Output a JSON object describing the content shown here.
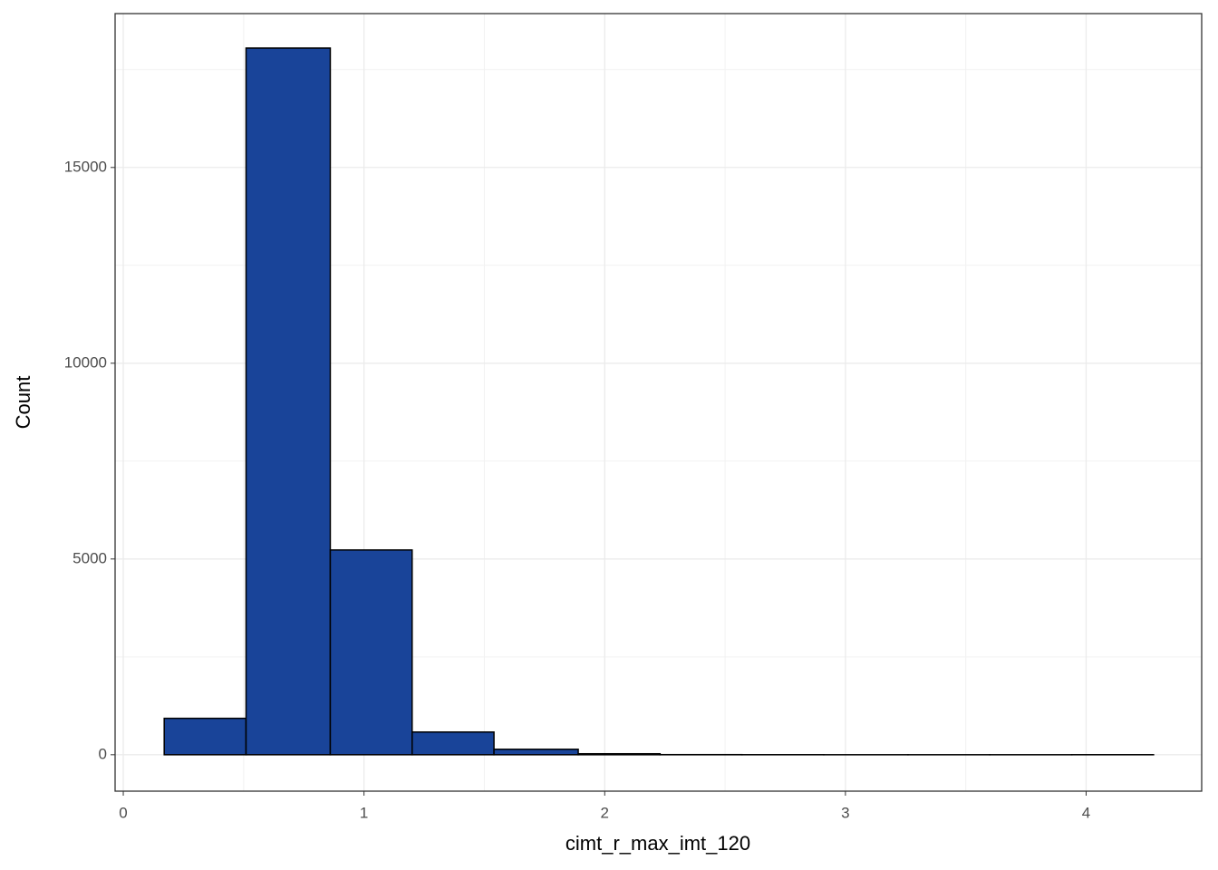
{
  "chart_data": {
    "type": "histogram",
    "x_label": "cimt_r_max_imt_120",
    "y_label": "Count",
    "bins": [
      0.17,
      0.51,
      0.86,
      1.2,
      1.54,
      1.89,
      2.23,
      2.57,
      2.91,
      3.26,
      3.6,
      3.94,
      4.28
    ],
    "values": [
      930,
      18050,
      5230,
      580,
      140,
      25,
      3,
      1,
      0,
      0,
      0,
      1
    ],
    "color": "#194499",
    "edge_color": "#000000",
    "xlim": [
      -0.034,
      4.48
    ],
    "xticks": [
      0,
      1,
      2,
      3,
      4
    ],
    "ylim": [
      -930,
      18930
    ],
    "yticks": [
      0,
      5000,
      10000,
      15000
    ],
    "grid": true,
    "minor_grid": true
  }
}
